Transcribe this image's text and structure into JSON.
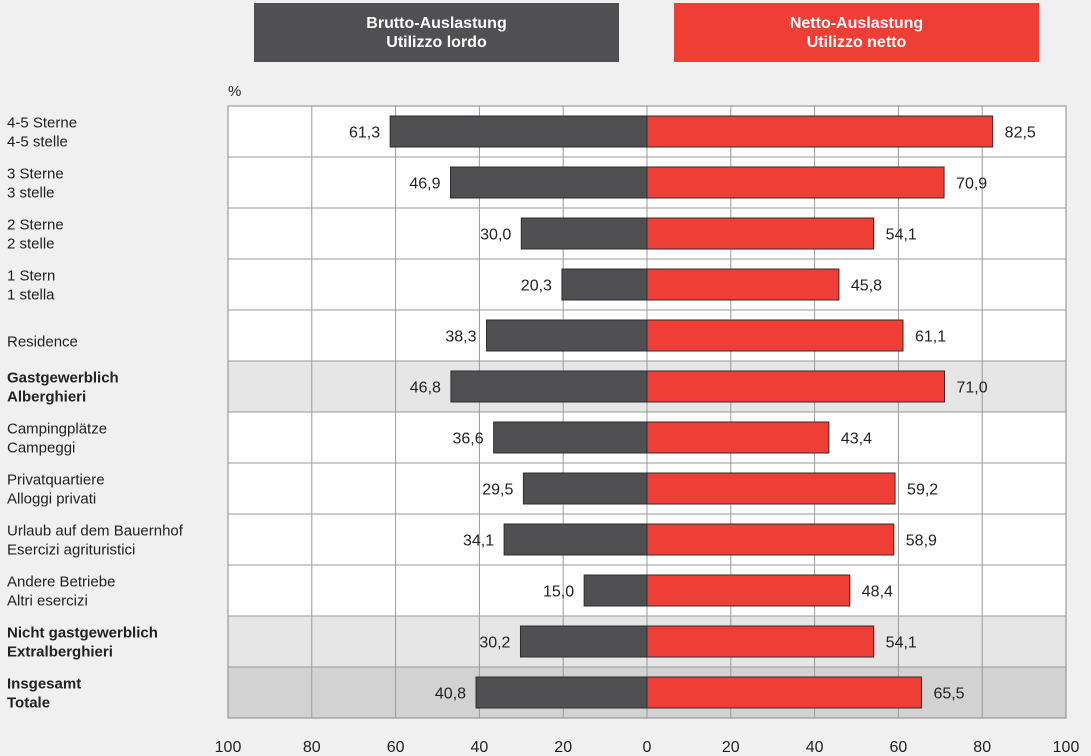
{
  "legend": {
    "brutto": {
      "line1": "Brutto-Auslastung",
      "line2": "Utilizzo lordo",
      "color": "#505052"
    },
    "netto": {
      "line1": "Netto-Auslastung",
      "line2": "Utilizzo netto",
      "color": "#ee3e36"
    }
  },
  "chart_data": {
    "type": "bar",
    "orientation": "horizontal-diverging",
    "unit_label": "%",
    "xlim": [
      -100,
      100
    ],
    "x_ticks": [
      100,
      80,
      60,
      40,
      20,
      0,
      20,
      40,
      60,
      80,
      100
    ],
    "grid": true,
    "categories": [
      {
        "line1": "4-5 Sterne",
        "line2": "4-5 stelle",
        "bold": false,
        "shade": "none"
      },
      {
        "line1": "3 Sterne",
        "line2": "3 stelle",
        "bold": false,
        "shade": "none"
      },
      {
        "line1": "2 Sterne",
        "line2": "2 stelle",
        "bold": false,
        "shade": "none"
      },
      {
        "line1": "1 Stern",
        "line2": "1 stella",
        "bold": false,
        "shade": "none"
      },
      {
        "line1": "Residence",
        "line2": "",
        "bold": false,
        "shade": "none"
      },
      {
        "line1": "Gastgewerblich",
        "line2": "Alberghieri",
        "bold": true,
        "shade": "light"
      },
      {
        "line1": "Campingplätze",
        "line2": "Campeggi",
        "bold": false,
        "shade": "none"
      },
      {
        "line1": "Privatquartiere",
        "line2": "Alloggi privati",
        "bold": false,
        "shade": "none"
      },
      {
        "line1": "Urlaub auf dem Bauernhof",
        "line2": "Esercizi agrituristici",
        "bold": false,
        "shade": "none"
      },
      {
        "line1": "Andere Betriebe",
        "line2": "Altri esercizi",
        "bold": false,
        "shade": "none"
      },
      {
        "line1": "Nicht gastgewerblich",
        "line2": "Extralberghieri",
        "bold": true,
        "shade": "light"
      },
      {
        "line1": "Insgesamt",
        "line2": "Totale",
        "bold": true,
        "shade": "dark"
      }
    ],
    "series": [
      {
        "name": "Brutto-Auslastung / Utilizzo lordo",
        "color": "#505052",
        "side": "left",
        "values": [
          61.3,
          46.9,
          30.0,
          20.3,
          38.3,
          46.8,
          36.6,
          29.5,
          34.1,
          15.0,
          30.2,
          40.8
        ],
        "labels": [
          "61,3",
          "46,9",
          "30,0",
          "20,3",
          "38,3",
          "46,8",
          "36,6",
          "29,5",
          "34,1",
          "15,0",
          "30,2",
          "40,8"
        ]
      },
      {
        "name": "Netto-Auslastung / Utilizzo netto",
        "color": "#ee3e36",
        "side": "right",
        "values": [
          82.5,
          70.9,
          54.1,
          45.8,
          61.1,
          71.0,
          43.4,
          59.2,
          58.9,
          48.4,
          54.1,
          65.5
        ],
        "labels": [
          "82,5",
          "70,9",
          "54,1",
          "45,8",
          "61,1",
          "71,0",
          "43,4",
          "59,2",
          "58,9",
          "48,4",
          "54,1",
          "65,5"
        ]
      }
    ],
    "colors": {
      "row_light": "#e6e6e7",
      "row_dark": "#d2d2d3",
      "row_white": "#ffffff"
    }
  }
}
